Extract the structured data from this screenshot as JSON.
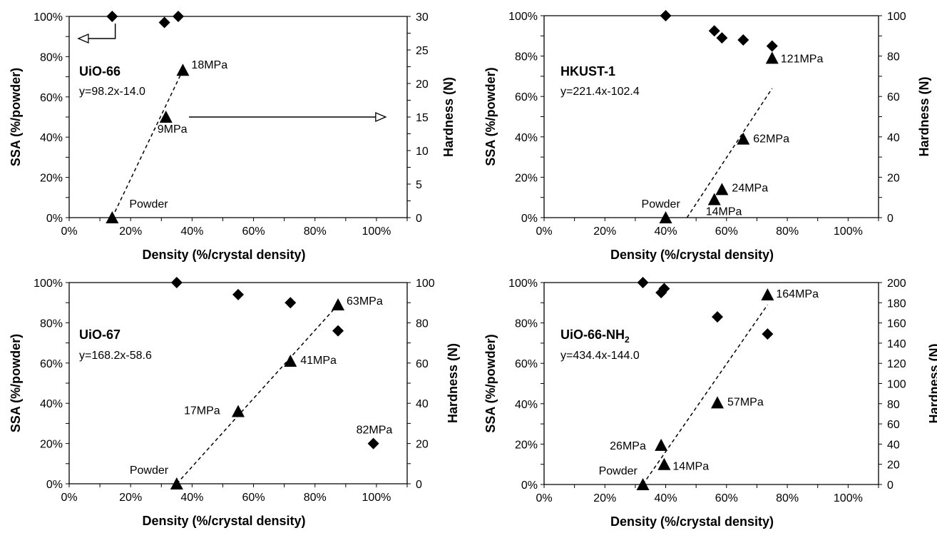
{
  "chart_data": [
    {
      "type": "scatter",
      "title": "UiO-66",
      "equation": "y=98.2x-14.0",
      "xlabel": "Density (%/crystal density)",
      "ylabel": "SSA (%/powder)",
      "y2label": "Hardness (N)",
      "xlim": [
        0,
        110
      ],
      "ylim": [
        0,
        100
      ],
      "y2lim": [
        0,
        30
      ],
      "xticks": [
        "0%",
        "20%",
        "40%",
        "60%",
        "80%",
        "100%"
      ],
      "yticks": [
        "0%",
        "20%",
        "40%",
        "60%",
        "80%",
        "100%"
      ],
      "y2ticks": [
        "0",
        "5",
        "10",
        "15",
        "20",
        "25",
        "30"
      ],
      "series": [
        {
          "marker": "diamond",
          "axis": "left",
          "x": [
            14,
            31,
            35.5
          ],
          "y": [
            100,
            97,
            100
          ]
        },
        {
          "marker": "triangle",
          "axis": "right",
          "x": [
            14,
            31.5,
            37
          ],
          "y": [
            0,
            15,
            22
          ]
        }
      ],
      "trendline": {
        "axis": "right",
        "x": [
          14,
          37
        ],
        "y": [
          0,
          22
        ]
      },
      "annotations": [
        {
          "text": "18MPa",
          "x": 37,
          "y": 22,
          "axis": "right"
        },
        {
          "text": "9MPa",
          "x": 31.5,
          "y": 15,
          "axis": "right"
        },
        {
          "text": "Powder",
          "x": 14,
          "y": 0,
          "axis": "right"
        }
      ],
      "arrows": [
        {
          "direction": "left",
          "x_from": 15,
          "x_to": 3,
          "y": 89,
          "axis": "left"
        },
        {
          "direction": "right",
          "x_from": 39,
          "x_to": 103,
          "y": 15,
          "axis": "right"
        }
      ]
    },
    {
      "type": "scatter",
      "title": "HKUST-1",
      "equation": "y=221.4x-102.4",
      "xlabel": "Density (%/crystal density)",
      "ylabel": "SSA (%/powder)",
      "y2label": "Hardness (N)",
      "xlim": [
        0,
        110
      ],
      "ylim": [
        0,
        100
      ],
      "y2lim": [
        0,
        100
      ],
      "xticks": [
        "0%",
        "20%",
        "40%",
        "60%",
        "80%",
        "100%"
      ],
      "yticks": [
        "0%",
        "20%",
        "40%",
        "60%",
        "80%",
        "100%"
      ],
      "y2ticks": [
        "0",
        "20",
        "40",
        "60",
        "80",
        "100"
      ],
      "series": [
        {
          "marker": "diamond",
          "axis": "left",
          "x": [
            40,
            56,
            58.5,
            65.5,
            75
          ],
          "y": [
            100,
            92.5,
            89,
            88,
            85
          ]
        },
        {
          "marker": "triangle",
          "axis": "right",
          "x": [
            40,
            56,
            58.5,
            65.5,
            75
          ],
          "y": [
            0,
            9,
            14,
            39,
            79
          ]
        }
      ],
      "trendline": {
        "axis": "right",
        "x": [
          47,
          75
        ],
        "y": [
          0,
          64
        ]
      },
      "annotations": [
        {
          "text": "121MPa",
          "x": 75,
          "y": 79,
          "axis": "right"
        },
        {
          "text": "62MPa",
          "x": 65.5,
          "y": 39,
          "axis": "right"
        },
        {
          "text": "24MPa",
          "x": 58.5,
          "y": 14,
          "axis": "right"
        },
        {
          "text": "14MPa",
          "x": 56,
          "y": 9,
          "axis": "right"
        },
        {
          "text": "Powder",
          "x": 40,
          "y": 0,
          "axis": "right"
        }
      ]
    },
    {
      "type": "scatter",
      "title": "UiO-67",
      "equation": "y=168.2x-58.6",
      "xlabel": "Density (%/crystal density)",
      "ylabel": "SSA (%/powder)",
      "y2label": "Hardness (N)",
      "xlim": [
        0,
        110
      ],
      "ylim": [
        0,
        100
      ],
      "y2lim": [
        0,
        100
      ],
      "xticks": [
        "0%",
        "20%",
        "40%",
        "60%",
        "80%",
        "100%"
      ],
      "yticks": [
        "0%",
        "20%",
        "40%",
        "60%",
        "80%",
        "100%"
      ],
      "y2ticks": [
        "0",
        "20",
        "40",
        "60",
        "80",
        "100"
      ],
      "series": [
        {
          "marker": "diamond",
          "axis": "left",
          "x": [
            35,
            55,
            72,
            87.5,
            99
          ],
          "y": [
            100,
            94,
            90,
            76,
            20
          ]
        },
        {
          "marker": "triangle",
          "axis": "right",
          "x": [
            35,
            55,
            72,
            87.5
          ],
          "y": [
            0,
            36,
            61,
            89
          ]
        }
      ],
      "trendline": {
        "axis": "right",
        "x": [
          35,
          87.5
        ],
        "y": [
          0,
          89
        ]
      },
      "annotations": [
        {
          "text": "63MPa",
          "x": 87.5,
          "y": 89,
          "axis": "right"
        },
        {
          "text": "41MPa",
          "x": 72,
          "y": 61,
          "axis": "right"
        },
        {
          "text": "17MPa",
          "x": 55,
          "y": 36,
          "axis": "right"
        },
        {
          "text": "82MPa",
          "x": 99,
          "y": 20,
          "axis": "right"
        },
        {
          "text": "Powder",
          "x": 35,
          "y": 0,
          "axis": "right"
        }
      ]
    },
    {
      "type": "scatter",
      "title": "UiO-66-NH",
      "title_subscript": "2",
      "equation": "y=434.4x-144.0",
      "xlabel": "Density (%/crystal density)",
      "ylabel": "SSA (%/powder)",
      "y2label": "Hardness (N)",
      "xlim": [
        0,
        110
      ],
      "ylim": [
        0,
        100
      ],
      "y2lim": [
        0,
        200
      ],
      "xticks": [
        "0%",
        "20%",
        "40%",
        "60%",
        "80%",
        "100%"
      ],
      "yticks": [
        "0%",
        "20%",
        "40%",
        "60%",
        "80%",
        "100%"
      ],
      "y2ticks": [
        "0",
        "20",
        "40",
        "60",
        "80",
        "100",
        "120",
        "140",
        "160",
        "180",
        "200"
      ],
      "series": [
        {
          "marker": "diamond",
          "axis": "left",
          "x": [
            32.5,
            38.5,
            39.5,
            57,
            73.5
          ],
          "y": [
            100,
            95,
            97,
            83,
            74.5
          ]
        },
        {
          "marker": "triangle",
          "axis": "right",
          "x": [
            32.5,
            38.5,
            39.5,
            57,
            73.5
          ],
          "y": [
            0,
            39,
            20,
            81,
            188
          ]
        }
      ],
      "trendline": {
        "axis": "right",
        "x": [
          32.5,
          73.5
        ],
        "y": [
          0,
          178
        ]
      },
      "annotations": [
        {
          "text": "164MPa",
          "x": 73.5,
          "y": 188,
          "axis": "right"
        },
        {
          "text": "57MPa",
          "x": 57,
          "y": 81,
          "axis": "right"
        },
        {
          "text": "26MPa",
          "x": 38.5,
          "y": 39,
          "axis": "right"
        },
        {
          "text": "14MPa",
          "x": 39.5,
          "y": 20,
          "axis": "right"
        },
        {
          "text": "Powder",
          "x": 32.5,
          "y": 0,
          "axis": "right"
        }
      ]
    }
  ]
}
